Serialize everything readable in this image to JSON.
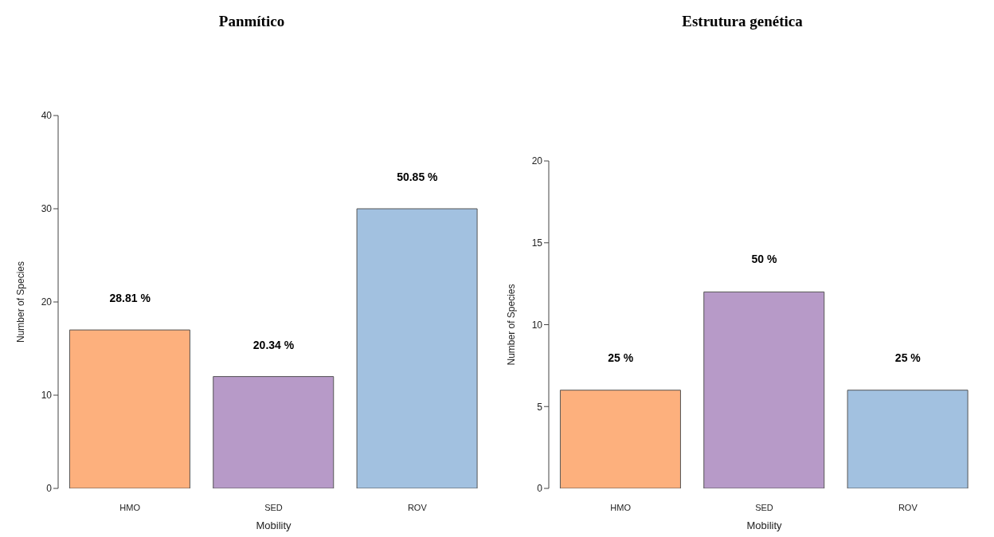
{
  "chart_data": [
    {
      "type": "bar",
      "title": "Panmítico",
      "xlabel": "Mobility",
      "ylabel": "Number of Species",
      "categories": [
        "HMO",
        "SED",
        "ROV"
      ],
      "values": [
        17,
        12,
        30
      ],
      "colors": [
        "#fdb07d",
        "#b79ac8",
        "#a2c1e0"
      ],
      "annotations": [
        {
          "text": "28.81 %",
          "x": "HMO",
          "y": 17
        },
        {
          "text": "20.34 %",
          "x": "SED",
          "y": 12
        },
        {
          "text": "50.85 %",
          "x": "ROV",
          "y": 30
        }
      ],
      "ylim": [
        0,
        40
      ],
      "yticks": [
        0,
        10,
        20,
        30,
        40
      ],
      "grid": false,
      "legend": false
    },
    {
      "type": "bar",
      "title": "Estrutura genética",
      "xlabel": "Mobility",
      "ylabel": "Number of Species",
      "categories": [
        "HMO",
        "SED",
        "ROV"
      ],
      "values": [
        6,
        12,
        6
      ],
      "colors": [
        "#fdb07d",
        "#b79ac8",
        "#a2c1e0"
      ],
      "annotations": [
        {
          "text": "25 %",
          "x": "HMO",
          "y": 6
        },
        {
          "text": "50 %",
          "x": "SED",
          "y": 12
        },
        {
          "text": "25 %",
          "x": "ROV",
          "y": 6
        }
      ],
      "ylim": [
        0,
        20
      ],
      "yticks": [
        0,
        5,
        10,
        15,
        20
      ],
      "grid": false,
      "legend": false
    }
  ]
}
